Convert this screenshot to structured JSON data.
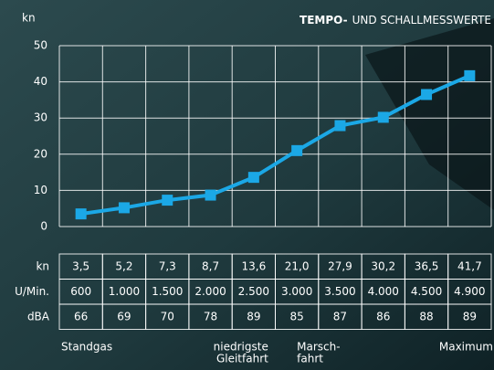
{
  "chart_data": {
    "type": "line",
    "title": {
      "bold": "TEMPO-",
      "rest": "UND SCHALLMESSWERTE"
    },
    "y_label": "kn",
    "ylim": [
      0,
      50
    ],
    "yticks": [
      0,
      10,
      20,
      30,
      40,
      50
    ],
    "grid": true,
    "categories": [
      [
        "Standgas"
      ],
      null,
      null,
      null,
      [
        "niedrigste",
        "Gleitfahrt"
      ],
      [
        "Marsch-",
        "fahrt"
      ],
      null,
      null,
      null,
      [
        "Maximum"
      ]
    ],
    "series": [
      {
        "name": "kn",
        "color": "#1ba8e6",
        "values": [
          3.5,
          5.2,
          7.3,
          8.7,
          13.6,
          21.0,
          27.9,
          30.2,
          36.5,
          41.7
        ],
        "value_labels": [
          "3,5",
          "5,2",
          "7,3",
          "8,7",
          "13,6",
          "21,0",
          "27,9",
          "30,2",
          "36,5",
          "41,7"
        ]
      }
    ],
    "table_rows": [
      {
        "name": "U/Min.",
        "values": [
          600,
          1000,
          1500,
          2000,
          2500,
          3000,
          3500,
          4000,
          4500,
          4900
        ],
        "value_labels": [
          "600",
          "1.000",
          "1.500",
          "2.000",
          "2.500",
          "3.000",
          "3.500",
          "4.000",
          "4.500",
          "4.900"
        ]
      },
      {
        "name": "dBA",
        "values": [
          66,
          69,
          70,
          78,
          89,
          85,
          87,
          86,
          88,
          89
        ]
      }
    ]
  }
}
